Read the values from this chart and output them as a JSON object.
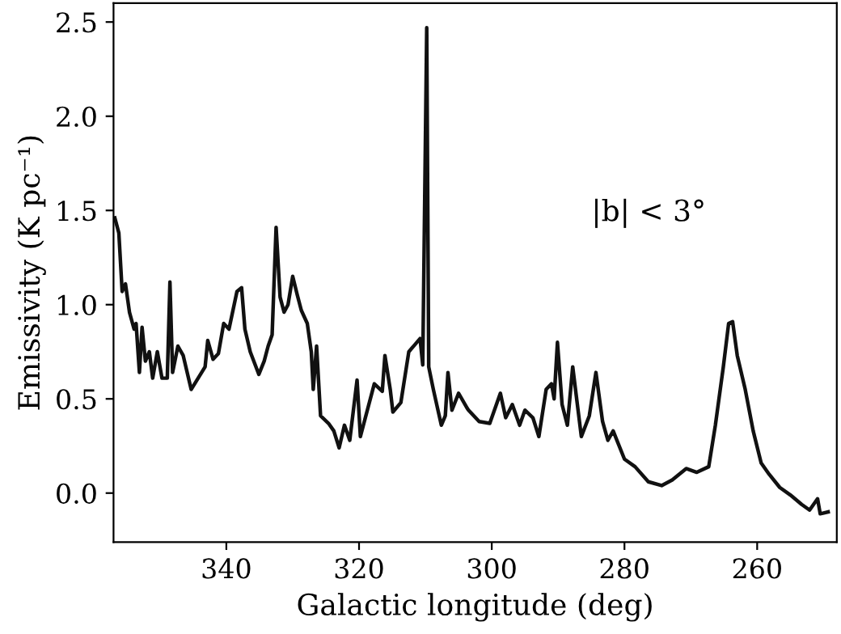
{
  "chart_data": {
    "type": "line",
    "xlabel": "Galactic longitude (deg)",
    "ylabel": "Emissivity (K pc⁻¹)",
    "annotations": [
      "|b| < 3°"
    ],
    "xlim": [
      357,
      248
    ],
    "xticks": [
      340,
      320,
      300,
      280,
      260
    ],
    "ylim": [
      -0.26,
      2.6
    ],
    "yticks": [
      {
        "value": 0,
        "label": "0.0"
      },
      0.5,
      {
        "value": 1,
        "label": "1.0"
      },
      1.5,
      {
        "value": 2,
        "label": "2.0"
      },
      2.5
    ],
    "grid": false,
    "marker": "none",
    "line_style": "solid",
    "series": [
      {
        "color": "#111111",
        "x": [
          356.8,
          356.2,
          355.7,
          355.2,
          354.6,
          353.9,
          353.6,
          353.1,
          352.7,
          352.2,
          351.6,
          351.1,
          350.4,
          349.7,
          348.9,
          348.5,
          348.1,
          347.3,
          346.5,
          345.3,
          343.2,
          342.8,
          342.0,
          341.2,
          340.4,
          339.6,
          338.4,
          337.7,
          337.2,
          336.4,
          335.1,
          334.3,
          333.7,
          333.1,
          332.5,
          331.9,
          331.3,
          330.7,
          330.0,
          329.3,
          328.7,
          327.8,
          327.2,
          326.9,
          326.4,
          325.8,
          324.6,
          323.8,
          323.0,
          322.2,
          321.4,
          320.3,
          319.8,
          317.7,
          316.5,
          316.1,
          315.3,
          314.9,
          313.7,
          312.5,
          310.8,
          310.4,
          309.8,
          309.5,
          308.8,
          307.6,
          307.0,
          306.6,
          306.0,
          305.0,
          303.7,
          303.5,
          301.9,
          300.3,
          298.7,
          297.9,
          296.9,
          295.8,
          295.0,
          293.8,
          292.9,
          291.8,
          291.0,
          290.6,
          290.1,
          289.4,
          288.6,
          287.8,
          286.5,
          285.3,
          284.3,
          283.3,
          282.5,
          281.7,
          280.0,
          278.4,
          276.4,
          274.4,
          272.8,
          270.7,
          269.1,
          267.3,
          266.3,
          265.1,
          264.3,
          263.7,
          263.0,
          261.8,
          260.6,
          259.4,
          258.2,
          256.6,
          255.0,
          253.3,
          252.1,
          250.9,
          250.5,
          249.3
        ],
        "values": [
          1.46,
          1.38,
          1.07,
          1.11,
          0.96,
          0.87,
          0.9,
          0.64,
          0.88,
          0.7,
          0.75,
          0.61,
          0.75,
          0.61,
          0.61,
          1.12,
          0.64,
          0.78,
          0.73,
          0.55,
          0.67,
          0.81,
          0.71,
          0.74,
          0.9,
          0.87,
          1.07,
          1.09,
          0.87,
          0.75,
          0.63,
          0.7,
          0.78,
          0.84,
          1.41,
          1.04,
          0.96,
          1.0,
          1.15,
          1.05,
          0.97,
          0.9,
          0.75,
          0.55,
          0.78,
          0.41,
          0.37,
          0.33,
          0.24,
          0.36,
          0.28,
          0.6,
          0.3,
          0.58,
          0.54,
          0.73,
          0.55,
          0.43,
          0.48,
          0.75,
          0.82,
          0.68,
          2.47,
          0.67,
          0.55,
          0.36,
          0.41,
          0.64,
          0.44,
          0.53,
          0.45,
          0.44,
          0.38,
          0.37,
          0.53,
          0.4,
          0.47,
          0.36,
          0.44,
          0.4,
          0.3,
          0.55,
          0.58,
          0.5,
          0.8,
          0.47,
          0.36,
          0.67,
          0.3,
          0.41,
          0.64,
          0.38,
          0.28,
          0.33,
          0.18,
          0.14,
          0.06,
          0.04,
          0.07,
          0.13,
          0.11,
          0.14,
          0.36,
          0.67,
          0.9,
          0.91,
          0.73,
          0.55,
          0.33,
          0.16,
          0.1,
          0.03,
          -0.01,
          -0.06,
          -0.09,
          -0.03,
          -0.11,
          -0.1
        ]
      }
    ]
  }
}
